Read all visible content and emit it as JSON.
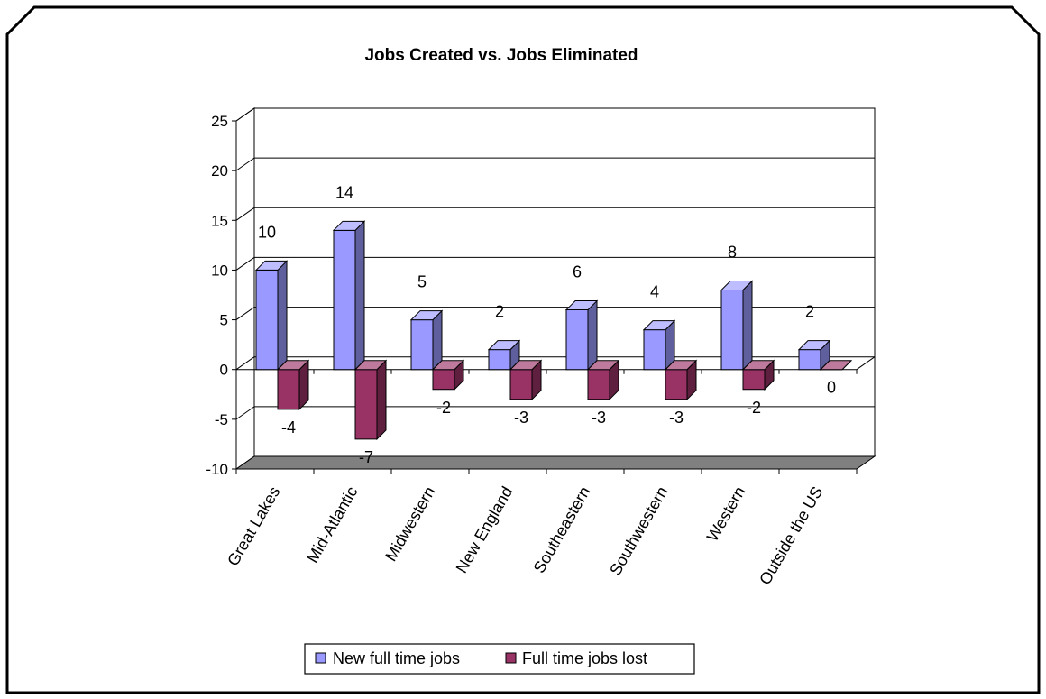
{
  "chart_data": {
    "type": "bar",
    "title": "Jobs Created vs. Jobs Eliminated",
    "categories": [
      "Great Lakes",
      "Mid-Atlantic",
      "Midwestern",
      "New England",
      "Southeastern",
      "Southwestern",
      "Western",
      "Outside the US"
    ],
    "series": [
      {
        "name": "New full time jobs",
        "values": [
          10,
          14,
          5,
          2,
          6,
          4,
          8,
          2
        ],
        "color": "#9999ff"
      },
      {
        "name": "Full time jobs lost",
        "values": [
          -4,
          -7,
          -2,
          -3,
          -3,
          -3,
          -2,
          0
        ],
        "color": "#993366"
      }
    ],
    "ylim": [
      -10,
      25
    ],
    "yticks": [
      "25",
      "20",
      "15",
      "10",
      "5",
      "0",
      "-5",
      "-10"
    ],
    "grid": true,
    "legend": "bottom",
    "style": "3d-clustered-column",
    "colors": {
      "frame": "#000000",
      "floor": "#808080",
      "gridline": "#000000"
    }
  }
}
